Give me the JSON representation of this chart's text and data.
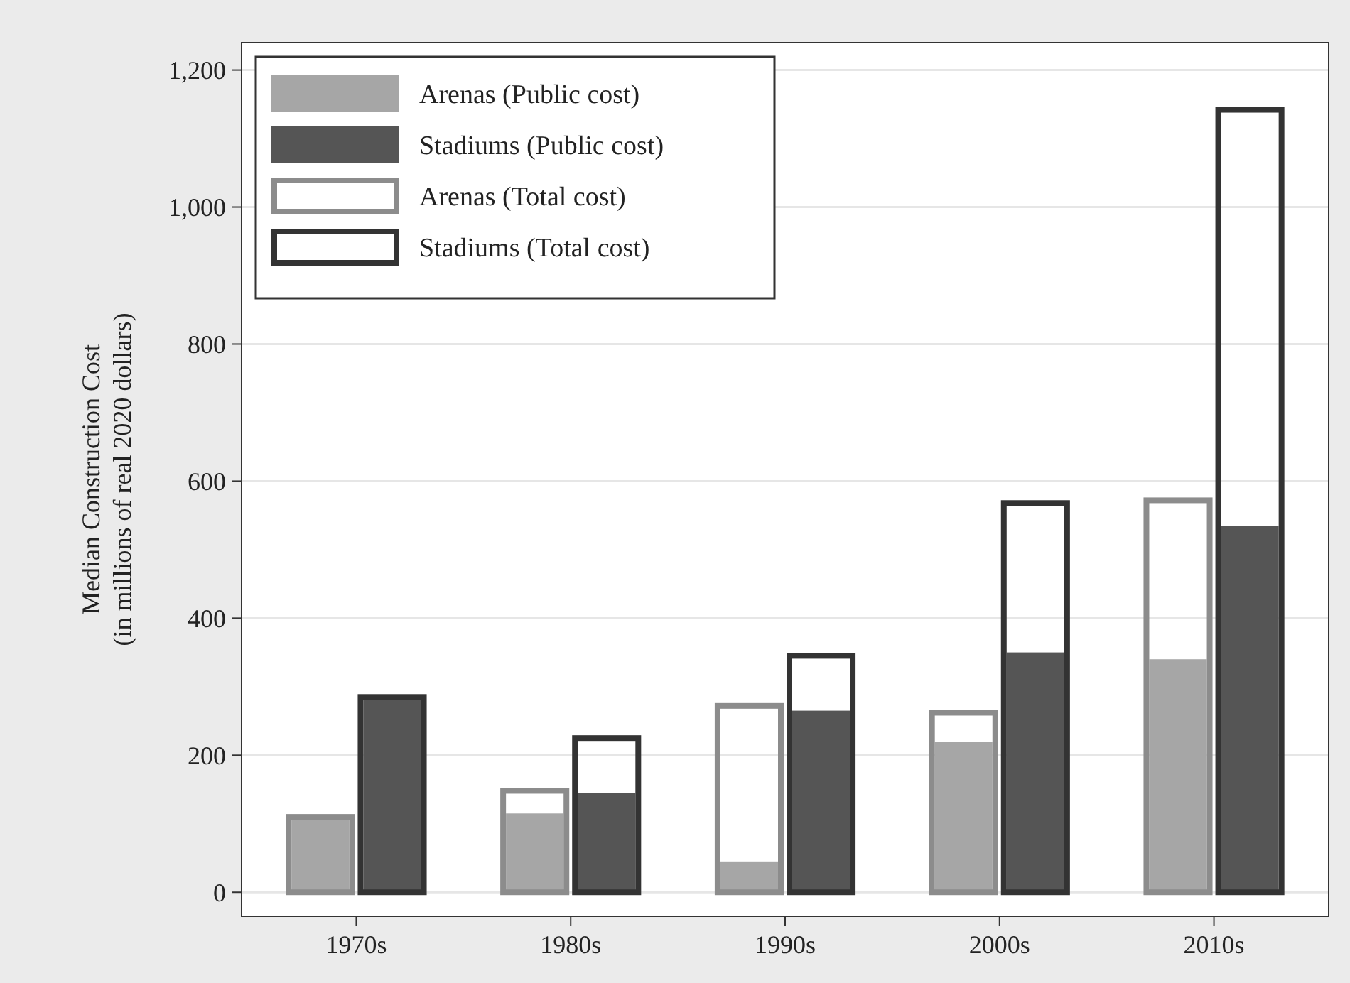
{
  "chart_data": {
    "type": "bar",
    "ylabel": "Median Construction Cost\n(in millions of real 2020 dollars)",
    "categories": [
      "1970s",
      "1980s",
      "1990s",
      "2000s",
      "2010s"
    ],
    "series": [
      {
        "name": "Arenas (Public cost)",
        "color": "#a6a6a6",
        "values": [
          110,
          115,
          45,
          220,
          340
        ]
      },
      {
        "name": "Stadiums (Public cost)",
        "color": "#555555",
        "values": [
          285,
          145,
          265,
          350,
          535
        ]
      },
      {
        "name": "Arenas (Total cost)",
        "color": "#8c8c8c",
        "values": [
          110,
          148,
          272,
          262,
          572
        ]
      },
      {
        "name": "Stadiums (Total cost)",
        "color": "#333333",
        "values": [
          285,
          225,
          345,
          568,
          1142
        ]
      }
    ],
    "ylim": [
      -35,
      1240
    ],
    "yticks": [
      0,
      200,
      400,
      600,
      800,
      {
        "value": 1000,
        "label": "1,000"
      },
      {
        "value": 1200,
        "label": "1,200"
      }
    ],
    "grid": "y",
    "legend": "top left"
  }
}
